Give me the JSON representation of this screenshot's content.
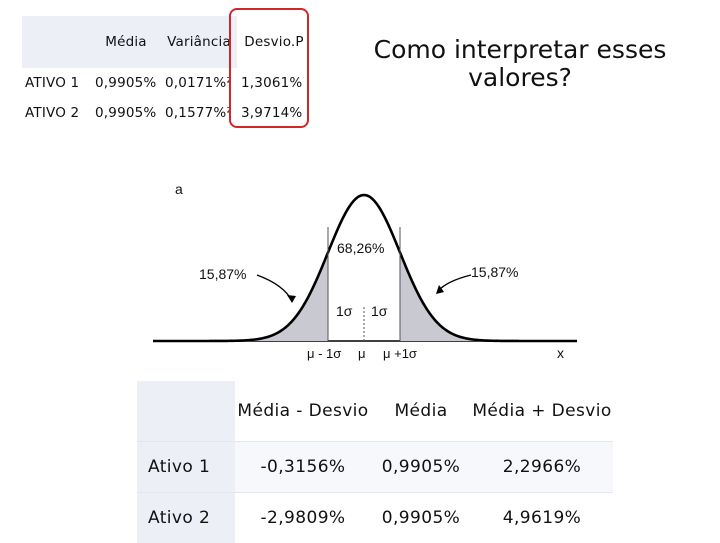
{
  "top_table": {
    "headers": [
      "",
      "Média",
      "Variância",
      "Desvio.P"
    ],
    "rows": [
      {
        "label": "ATIVO 1",
        "media": "0,9905%",
        "variancia": "0,0171%²",
        "desvio": "1,3061%"
      },
      {
        "label": "ATIVO 2",
        "media": "0,9905%",
        "variancia": "0,1577%²",
        "desvio": "3,9714%"
      }
    ],
    "highlight_color": "#d3262b"
  },
  "question": "Como interpretar esses valores?",
  "figure": {
    "panel_label": "a",
    "center_pct": "68,26%",
    "left_tail_pct": "15,87%",
    "right_tail_pct": "15,87%",
    "sigma_left": "1σ",
    "sigma_right": "1σ",
    "axis_mu_minus": "μ - 1σ",
    "axis_mu": "μ",
    "axis_mu_plus": "μ +1σ",
    "axis_x": "x",
    "curve_color": "#000000",
    "tail_fill": "#c9c9d2"
  },
  "bottom_table": {
    "headers": [
      "",
      "Média - Desvio",
      "Média",
      "Média + Desvio"
    ],
    "rows": [
      {
        "label": "Ativo 1",
        "minus": "-0,3156%",
        "media": "0,9905%",
        "plus": "2,2966%"
      },
      {
        "label": "Ativo 2",
        "minus": "-2,9809%",
        "media": "0,9905%",
        "plus": "4,9619%"
      }
    ]
  }
}
